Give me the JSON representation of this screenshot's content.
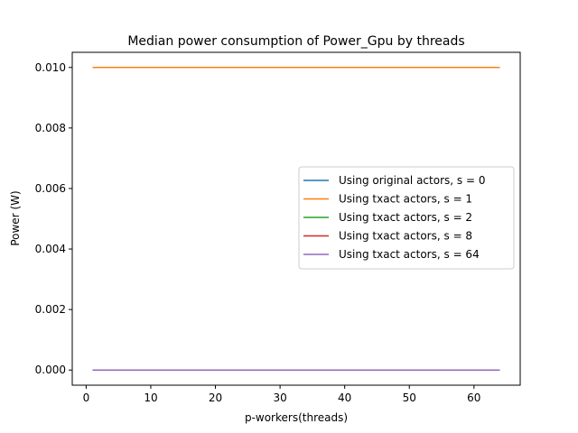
{
  "chart_data": {
    "type": "line",
    "title": "Median power consumption of Power_Gpu by threads",
    "xlabel": "p-workers(threads)",
    "ylabel": "Power (W)",
    "xlim": [
      -2.15,
      67.15
    ],
    "ylim": [
      -0.0005,
      0.0105
    ],
    "xticks": [
      0,
      10,
      20,
      30,
      40,
      50,
      60
    ],
    "xtick_labels": [
      "0",
      "10",
      "20",
      "30",
      "40",
      "50",
      "60"
    ],
    "yticks": [
      0.0,
      0.002,
      0.004,
      0.006,
      0.008,
      0.01
    ],
    "ytick_labels": [
      "0.000",
      "0.002",
      "0.004",
      "0.006",
      "0.008",
      "0.010"
    ],
    "grid": false,
    "legend_position": "center-right",
    "series": [
      {
        "name": "Using original actors, s = 0",
        "color": "#1f77b4",
        "x": [
          1,
          64
        ],
        "y": [
          0.0,
          0.0
        ]
      },
      {
        "name": "Using txact actors, s = 1",
        "color": "#ff7f0e",
        "x": [
          1,
          64
        ],
        "y": [
          0.01,
          0.01
        ]
      },
      {
        "name": "Using txact actors, s = 2",
        "color": "#2ca02c",
        "x": [
          1,
          64
        ],
        "y": [
          0.0,
          0.0
        ]
      },
      {
        "name": "Using txact actors, s = 8",
        "color": "#d62728",
        "x": [
          1,
          64
        ],
        "y": [
          0.0,
          0.0
        ]
      },
      {
        "name": "Using txact actors, s = 64",
        "color": "#9467bd",
        "x": [
          1,
          64
        ],
        "y": [
          0.0,
          0.0
        ]
      }
    ]
  }
}
